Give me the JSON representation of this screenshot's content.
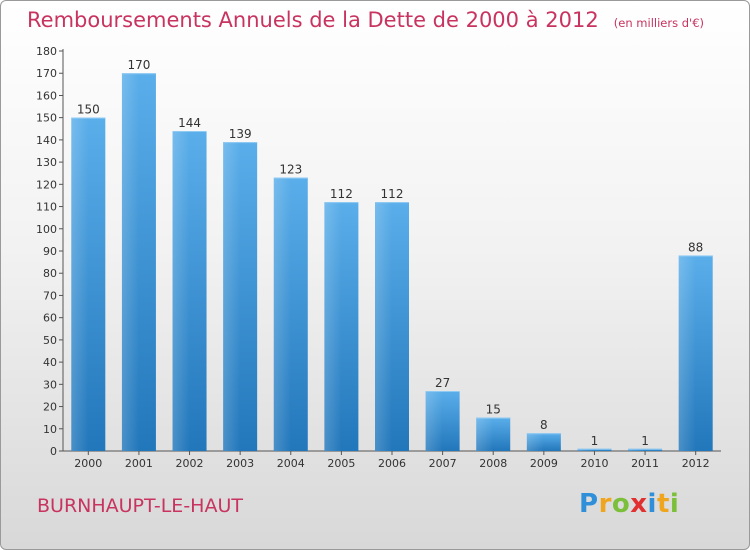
{
  "chart_data": {
    "type": "bar",
    "title": "Remboursements Annuels de la Dette de 2000 à 2012",
    "subtitle": "(en milliers d'€)",
    "categories": [
      "2000",
      "2001",
      "2002",
      "2003",
      "2004",
      "2005",
      "2006",
      "2007",
      "2008",
      "2009",
      "2010",
      "2011",
      "2012"
    ],
    "values": [
      150,
      170,
      144,
      139,
      123,
      112,
      112,
      27,
      15,
      8,
      1,
      1,
      88
    ],
    "ylim": [
      0,
      180
    ],
    "yticks": [
      0,
      10,
      20,
      30,
      40,
      50,
      60,
      70,
      80,
      90,
      100,
      110,
      120,
      130,
      140,
      150,
      160,
      170,
      180
    ],
    "grid": false,
    "legend": "none",
    "bar_color": "#3d8fd6"
  },
  "location": "BURNHAUPT-LE-HAUT",
  "logo": {
    "letters": [
      "P",
      "r",
      "o",
      "x",
      "i",
      "t",
      "i"
    ],
    "colors": [
      "#2f8fd8",
      "#f0a51e",
      "#7cbf3a",
      "#e0302f",
      "#2f8fd8",
      "#f0a51e",
      "#7cbf3a"
    ]
  }
}
